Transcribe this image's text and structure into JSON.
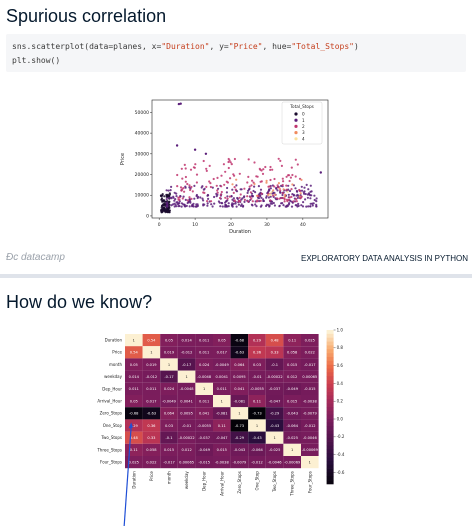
{
  "slide1": {
    "title": "Spurious correlation",
    "code": {
      "line1": {
        "p1": "sns.scatterplot(data=planes, x=",
        "s1": "\"Duration\"",
        "p2": ", y=",
        "s2": "\"Price\"",
        "p3": ", hue=",
        "s3": "\"Total_Stops\"",
        "p4": ")"
      },
      "line2": "plt.show()"
    },
    "footer": {
      "logo": "datacamp",
      "text": "EXPLORATORY DATA ANALYSIS IN PYTHON"
    }
  },
  "slide2": {
    "title": "How do we know?"
  },
  "colors": {
    "page_bg": "#ffffff",
    "code_bg": "#f5f6f8",
    "string": "#c53e1c",
    "title": "#05192d",
    "arrow": "#1f4fd6"
  },
  "chart_data": [
    {
      "type": "scatter",
      "xlabel": "Duration",
      "ylabel": "Price",
      "xlim": [
        -2,
        47
      ],
      "ylim": [
        -1000,
        56000
      ],
      "xticks": [
        0,
        10,
        20,
        30,
        40
      ],
      "yticks": [
        0,
        10000,
        20000,
        30000,
        40000,
        50000
      ],
      "legend": {
        "title": "Total_Stops",
        "entries": [
          "0",
          "1",
          "2",
          "3",
          "4"
        ],
        "position": "top-right"
      },
      "hue_colors": {
        "0": "#1a0b2e",
        "1": "#5b1f7a",
        "2": "#c0356f",
        "3": "#f08a5e",
        "4": "#fbe3a0"
      },
      "series": [
        {
          "name": "0",
          "cluster": {
            "x": [
              0.5,
              3
            ],
            "y": [
              1800,
              11000
            ],
            "n": 110
          }
        },
        {
          "name": "1",
          "cluster": {
            "x": [
              2,
              44
            ],
            "y": [
              4500,
              15000
            ],
            "n": 340
          }
        },
        {
          "name": "2",
          "cluster": {
            "x": [
              5,
              40
            ],
            "y": [
              7000,
              28000
            ],
            "n": 170
          }
        },
        {
          "name": "3",
          "cluster": {
            "x": [
              18,
              42
            ],
            "y": [
              9000,
              18000
            ],
            "n": 18
          }
        },
        {
          "name": "4",
          "cluster": {
            "x": [
              30,
              36
            ],
            "y": [
              10000,
              12000
            ],
            "n": 4
          }
        }
      ],
      "outliers": [
        {
          "x": 5.5,
          "y": 54000
        },
        {
          "x": 6,
          "y": 54200
        },
        {
          "x": 45,
          "y": 21000
        },
        {
          "x": 10,
          "y": 32000
        },
        {
          "x": 13,
          "y": 30000
        },
        {
          "x": 5,
          "y": 34000
        }
      ]
    },
    {
      "type": "heatmap",
      "labels": [
        "Duration",
        "Price",
        "month",
        "weekday",
        "Dep_Hour",
        "Arrival_Hour",
        "Zero_Stops",
        "One_Stop",
        "Two_Stops",
        "Three_Stops",
        "Four_Stops"
      ],
      "matrix": [
        [
          "1",
          "0.54",
          "0.05",
          "0.014",
          "0.011",
          "0.05",
          "-0.68",
          "0.29",
          "0.48",
          "0.11",
          "0.025"
        ],
        [
          "0.54",
          "1",
          "0.019",
          "-0.012",
          "0.011",
          "0.017",
          "-0.63",
          "0.36",
          "0.33",
          "0.058",
          "0.022"
        ],
        [
          "0.05",
          "0.019",
          "1",
          "-0.17",
          "0.024",
          "-0.0049",
          "0.064",
          "0.03",
          "-0.1",
          "0.015",
          "-0.017"
        ],
        [
          "0.014",
          "-0.012",
          "-0.17",
          "1",
          "-0.0048",
          "0.0041",
          "0.0095",
          "-0.01",
          "-0.00022",
          "0.012",
          "0.00065"
        ],
        [
          "0.011",
          "0.011",
          "0.024",
          "-0.0048",
          "1",
          "0.011",
          "0.041",
          "-0.0055",
          "-0.037",
          "-0.049",
          "-0.015"
        ],
        [
          "0.05",
          "0.017",
          "-0.0049",
          "0.0041",
          "0.011",
          "1",
          "-0.081",
          "0.11",
          "-0.047",
          "0.015",
          "-0.0038"
        ],
        [
          "-0.68",
          "-0.63",
          "0.064",
          "0.0095",
          "0.041",
          "-0.081",
          "1",
          "-0.73",
          "-0.29",
          "-0.043",
          "-0.0079"
        ],
        [
          "0.29",
          "0.36",
          "0.03",
          "-0.01",
          "-0.0055",
          "0.11",
          "-0.73",
          "1",
          "-0.43",
          "-0.064",
          "-0.012"
        ],
        [
          "0.48",
          "0.33",
          "-0.1",
          "-0.00022",
          "-0.037",
          "-0.047",
          "-0.29",
          "-0.43",
          "1",
          "-0.025",
          "-0.0046"
        ],
        [
          "0.11",
          "0.058",
          "0.015",
          "0.012",
          "-0.049",
          "0.015",
          "-0.043",
          "-0.064",
          "-0.025",
          "1",
          "-0.00069"
        ],
        [
          "0.025",
          "0.022",
          "-0.017",
          "0.00065",
          "-0.015",
          "-0.0038",
          "-0.0079",
          "-0.012",
          "-0.0046",
          "-0.00069",
          "1"
        ]
      ],
      "colorbar": {
        "ticks": [
          "1.0",
          "0.8",
          "0.6",
          "0.4",
          "0.2",
          "0.0",
          "-0.2",
          "-0.4",
          "-0.6"
        ],
        "range": [
          -0.73,
          1.0
        ]
      },
      "annotation": "arrow pointing to Zero_Stops / Duration cell"
    }
  ]
}
